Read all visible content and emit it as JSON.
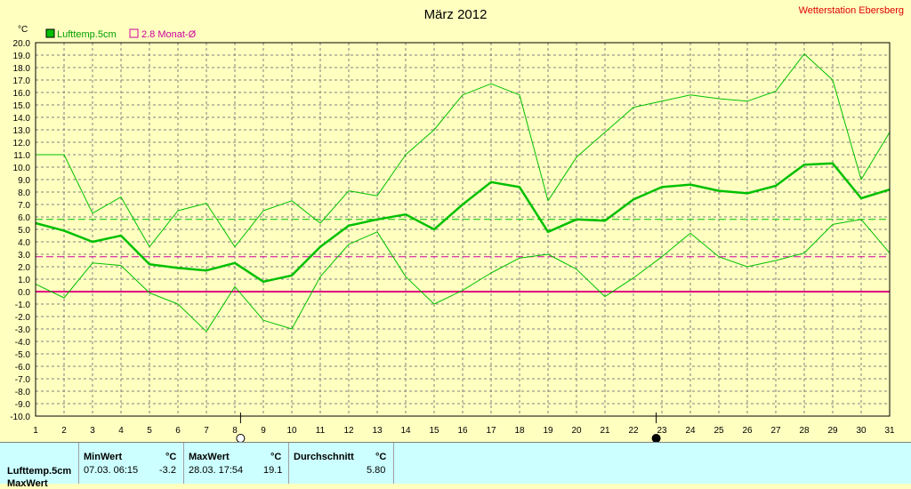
{
  "station": "Wetterstation Ebersberg",
  "colors": {
    "background": "#ffffc0",
    "grid": "#808080",
    "series": "#00c000",
    "avg_line": "#00c000",
    "monthly_avg": "#d000a0",
    "zero_line": "#e00080",
    "station_text": "#e00000",
    "stats_bg": "#ccffff"
  },
  "chart_data": {
    "type": "line",
    "title": "März 2012",
    "ylabel": "°C",
    "xlabel": "",
    "ylim": [
      -10,
      20
    ],
    "yticks": [
      "20.0",
      "19.0",
      "18.0",
      "17.0",
      "16.0",
      "15.0",
      "14.0",
      "13.0",
      "12.0",
      "11.0",
      "10.0",
      "9.0",
      "8.0",
      "7.0",
      "6.0",
      "5.0",
      "4.0",
      "3.0",
      "2.0",
      "1.0",
      "0.0",
      "-1.0",
      "-2.0",
      "-3.0",
      "-4.0",
      "-5.0",
      "-6.0",
      "-7.0",
      "-8.0",
      "-9.0",
      "-10.0"
    ],
    "x": [
      1,
      2,
      3,
      4,
      5,
      6,
      7,
      8,
      9,
      10,
      11,
      12,
      13,
      14,
      15,
      16,
      17,
      18,
      19,
      20,
      21,
      22,
      23,
      24,
      25,
      26,
      27,
      28,
      29,
      30,
      31
    ],
    "grid": true,
    "legend_position": "top-left",
    "legend": [
      {
        "label": "Lufttemp.5cm",
        "color": "#00c000",
        "style": "filled"
      },
      {
        "label": "2.8 Monat-Ø",
        "color": "#d000a0",
        "style": "outline"
      }
    ],
    "series": [
      {
        "role": "mean",
        "values": [
          5.5,
          4.9,
          4.0,
          4.5,
          2.2,
          1.9,
          1.7,
          2.3,
          0.8,
          1.3,
          3.6,
          5.3,
          5.8,
          6.2,
          5.0,
          7.0,
          8.8,
          8.4,
          4.8,
          5.8,
          5.7,
          7.4,
          8.4,
          8.6,
          8.1,
          7.9,
          8.5,
          10.2,
          10.3,
          7.5,
          8.2
        ]
      },
      {
        "role": "max",
        "values": [
          11.0,
          11.0,
          6.3,
          7.6,
          3.6,
          6.5,
          7.1,
          3.6,
          6.5,
          7.3,
          5.5,
          8.1,
          7.7,
          11.0,
          13.0,
          15.8,
          16.7,
          15.8,
          7.3,
          10.8,
          12.8,
          14.8,
          15.3,
          15.8,
          15.5,
          15.3,
          16.1,
          19.1,
          17.0,
          9.0,
          12.8
        ]
      },
      {
        "role": "min",
        "values": [
          0.6,
          -0.5,
          2.3,
          2.1,
          -0.1,
          -1.0,
          -3.2,
          0.4,
          -2.3,
          -3.0,
          1.2,
          3.8,
          4.8,
          1.2,
          -1.0,
          0.1,
          1.5,
          2.7,
          3.0,
          1.8,
          -0.4,
          1.1,
          2.8,
          4.7,
          2.8,
          2.0,
          2.5,
          3.1,
          5.4,
          5.8,
          3.1
        ]
      }
    ],
    "reference_lines": [
      {
        "name": "green-average-line",
        "value": 5.8,
        "color": "#00c000",
        "dashed": true
      },
      {
        "name": "monthly-average-line",
        "value": 2.8,
        "color": "#d000a0",
        "dashed": true
      },
      {
        "name": "zero-line",
        "value": 0.0,
        "color": "#e00080",
        "dashed": false
      }
    ],
    "moon_markers": [
      {
        "day": 8.2,
        "phase": "full",
        "icon": "full-moon-icon"
      },
      {
        "day": 22.8,
        "phase": "new",
        "icon": "new-moon-icon"
      }
    ]
  },
  "stats": {
    "row_label": "Lufttemp.5cm",
    "row_label_2": "MaxWert",
    "min": {
      "header": "MinWert",
      "unit": "°C",
      "time": "07.03.  06:15",
      "value": "-3.2"
    },
    "max": {
      "header": "MaxWert",
      "unit": "°C",
      "time": "28.03.  17:54",
      "value": "19.1"
    },
    "avg": {
      "header": "Durchschnitt",
      "unit": "°C",
      "value": "5.80"
    }
  }
}
